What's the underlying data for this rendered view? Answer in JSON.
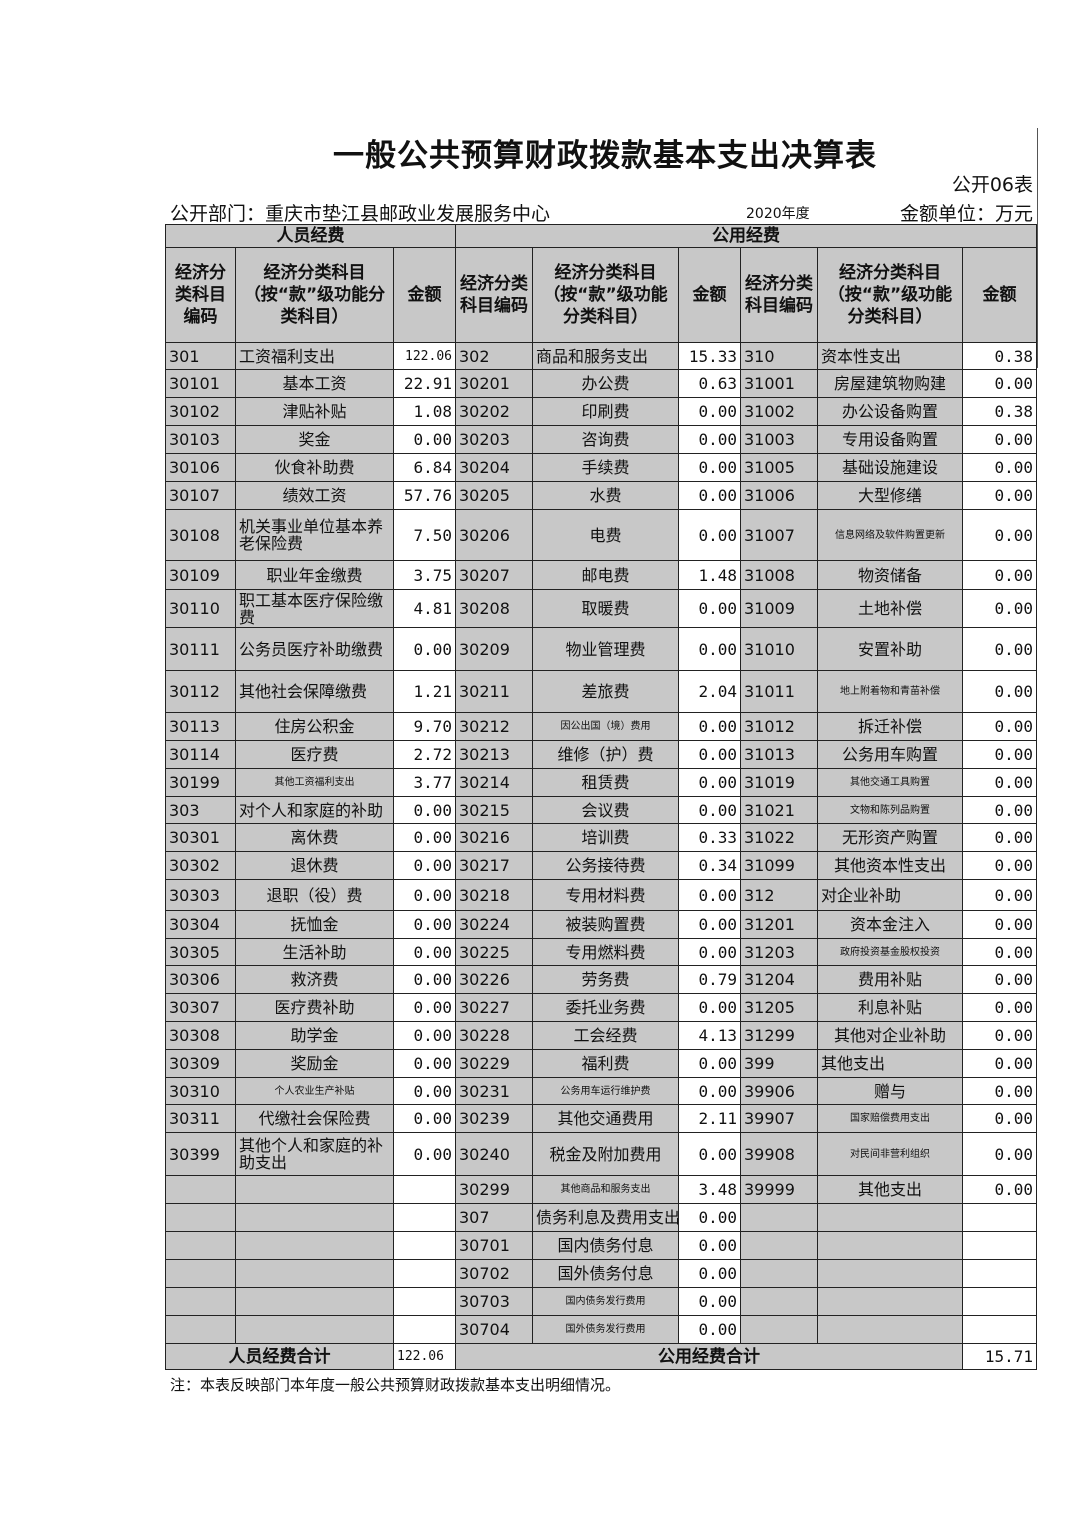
{
  "title": "一般公共预算财政拨款基本支出决算表",
  "form_no": "公开06表",
  "dept": "公开部门：重庆市垫江县邮政业发展服务中心",
  "year": "2020年度",
  "unit": "金额单位：万元",
  "groups": {
    "personnel": "人员经费",
    "public": "公用经费"
  },
  "headers": {
    "code": "经济分类科目编码",
    "code2": "经济分类科目编码",
    "name": "经济分类科目（按“款”级功能分类科目）",
    "amount": "金额"
  },
  "rows": [
    [
      "301",
      "工资福利支出",
      "122.06",
      "302",
      "商品和服务支出",
      "15.33",
      "310",
      "资本性支出",
      "0.38"
    ],
    [
      "30101",
      "基本工资",
      "22.91",
      "30201",
      "办公费",
      "0.63",
      "31001",
      "房屋建筑物购建",
      "0.00"
    ],
    [
      "30102",
      "津贴补贴",
      "1.08",
      "30202",
      "印刷费",
      "0.00",
      "31002",
      "办公设备购置",
      "0.38"
    ],
    [
      "30103",
      "奖金",
      "0.00",
      "30203",
      "咨询费",
      "0.00",
      "31003",
      "专用设备购置",
      "0.00"
    ],
    [
      "30106",
      "伙食补助费",
      "6.84",
      "30204",
      "手续费",
      "0.00",
      "31005",
      "基础设施建设",
      "0.00"
    ],
    [
      "30107",
      "绩效工资",
      "57.76",
      "30205",
      "水费",
      "0.00",
      "31006",
      "大型修缮",
      "0.00"
    ],
    [
      "30108",
      "机关事业单位基本养老保险费",
      "7.50",
      "30206",
      "电费",
      "0.00",
      "31007",
      "信息网络及软件购置更新",
      "0.00"
    ],
    [
      "30109",
      "职业年金缴费",
      "3.75",
      "30207",
      "邮电费",
      "1.48",
      "31008",
      "物资储备",
      "0.00"
    ],
    [
      "30110",
      "职工基本医疗保险缴费",
      "4.81",
      "30208",
      "取暖费",
      "0.00",
      "31009",
      "土地补偿",
      "0.00"
    ],
    [
      "30111",
      "公务员医疗补助缴费",
      "0.00",
      "30209",
      "物业管理费",
      "0.00",
      "31010",
      "安置补助",
      "0.00"
    ],
    [
      "30112",
      "其他社会保障缴费",
      "1.21",
      "30211",
      "差旅费",
      "2.04",
      "31011",
      "地上附着物和青苗补偿",
      "0.00"
    ],
    [
      "30113",
      "住房公积金",
      "9.70",
      "30212",
      "因公出国（境）费用",
      "0.00",
      "31012",
      "拆迁补偿",
      "0.00"
    ],
    [
      "30114",
      "医疗费",
      "2.72",
      "30213",
      "维修（护）费",
      "0.00",
      "31013",
      "公务用车购置",
      "0.00"
    ],
    [
      "30199",
      "其他工资福利支出",
      "3.77",
      "30214",
      "租赁费",
      "0.00",
      "31019",
      "其他交通工具购置",
      "0.00"
    ],
    [
      "303",
      "对个人和家庭的补助",
      "0.00",
      "30215",
      "会议费",
      "0.00",
      "31021",
      "文物和陈列品购置",
      "0.00"
    ],
    [
      "30301",
      "离休费",
      "0.00",
      "30216",
      "培训费",
      "0.33",
      "31022",
      "无形资产购置",
      "0.00"
    ],
    [
      "30302",
      "退休费",
      "0.00",
      "30217",
      "公务接待费",
      "0.34",
      "31099",
      "其他资本性支出",
      "0.00"
    ],
    [
      "30303",
      "退职（役）费",
      "0.00",
      "30218",
      "专用材料费",
      "0.00",
      "312",
      "对企业补助",
      "0.00"
    ],
    [
      "30304",
      "抚恤金",
      "0.00",
      "30224",
      "被装购置费",
      "0.00",
      "31201",
      "资本金注入",
      "0.00"
    ],
    [
      "30305",
      "生活补助",
      "0.00",
      "30225",
      "专用燃料费",
      "0.00",
      "31203",
      "政府投资基金股权投资",
      "0.00"
    ],
    [
      "30306",
      "救济费",
      "0.00",
      "30226",
      "劳务费",
      "0.79",
      "31204",
      "费用补贴",
      "0.00"
    ],
    [
      "30307",
      "医疗费补助",
      "0.00",
      "30227",
      "委托业务费",
      "0.00",
      "31205",
      "利息补贴",
      "0.00"
    ],
    [
      "30308",
      "助学金",
      "0.00",
      "30228",
      "工会经费",
      "4.13",
      "31299",
      "其他对企业补助",
      "0.00"
    ],
    [
      "30309",
      "奖励金",
      "0.00",
      "30229",
      "福利费",
      "0.00",
      "399",
      "其他支出",
      "0.00"
    ],
    [
      "30310",
      "个人农业生产补贴",
      "0.00",
      "30231",
      "公务用车运行维护费",
      "0.00",
      "39906",
      "赠与",
      "0.00"
    ],
    [
      "30311",
      "代缴社会保险费",
      "0.00",
      "30239",
      "其他交通费用",
      "2.11",
      "39907",
      "国家赔偿费用支出",
      "0.00"
    ],
    [
      "30399",
      "其他个人和家庭的补助支出",
      "0.00",
      "30240",
      "税金及附加费用",
      "0.00",
      "39908",
      "对民间非营利组织",
      "0.00"
    ],
    [
      "",
      "",
      "",
      "30299",
      "其他商品和服务支出",
      "3.48",
      "39999",
      "其他支出",
      "0.00"
    ],
    [
      "",
      "",
      "",
      "307",
      "债务利息及费用支出",
      "0.00",
      "",
      "",
      ""
    ],
    [
      "",
      "",
      "",
      "30701",
      "国内债务付息",
      "0.00",
      "",
      "",
      ""
    ],
    [
      "",
      "",
      "",
      "30702",
      "国外债务付息",
      "0.00",
      "",
      "",
      ""
    ],
    [
      "",
      "",
      "",
      "30703",
      "国内债务发行费用",
      "0.00",
      "",
      "",
      ""
    ],
    [
      "",
      "",
      "",
      "30704",
      "国外债务发行费用",
      "0.00",
      "",
      "",
      ""
    ]
  ],
  "totals": {
    "personnel_label": "人员经费合计",
    "personnel_value": "122.06",
    "public_label": "公用经费合计",
    "public_value": "15.71"
  },
  "note": "注：本表反映部门本年度一般公共预算财政拨款基本支出明细情况。"
}
